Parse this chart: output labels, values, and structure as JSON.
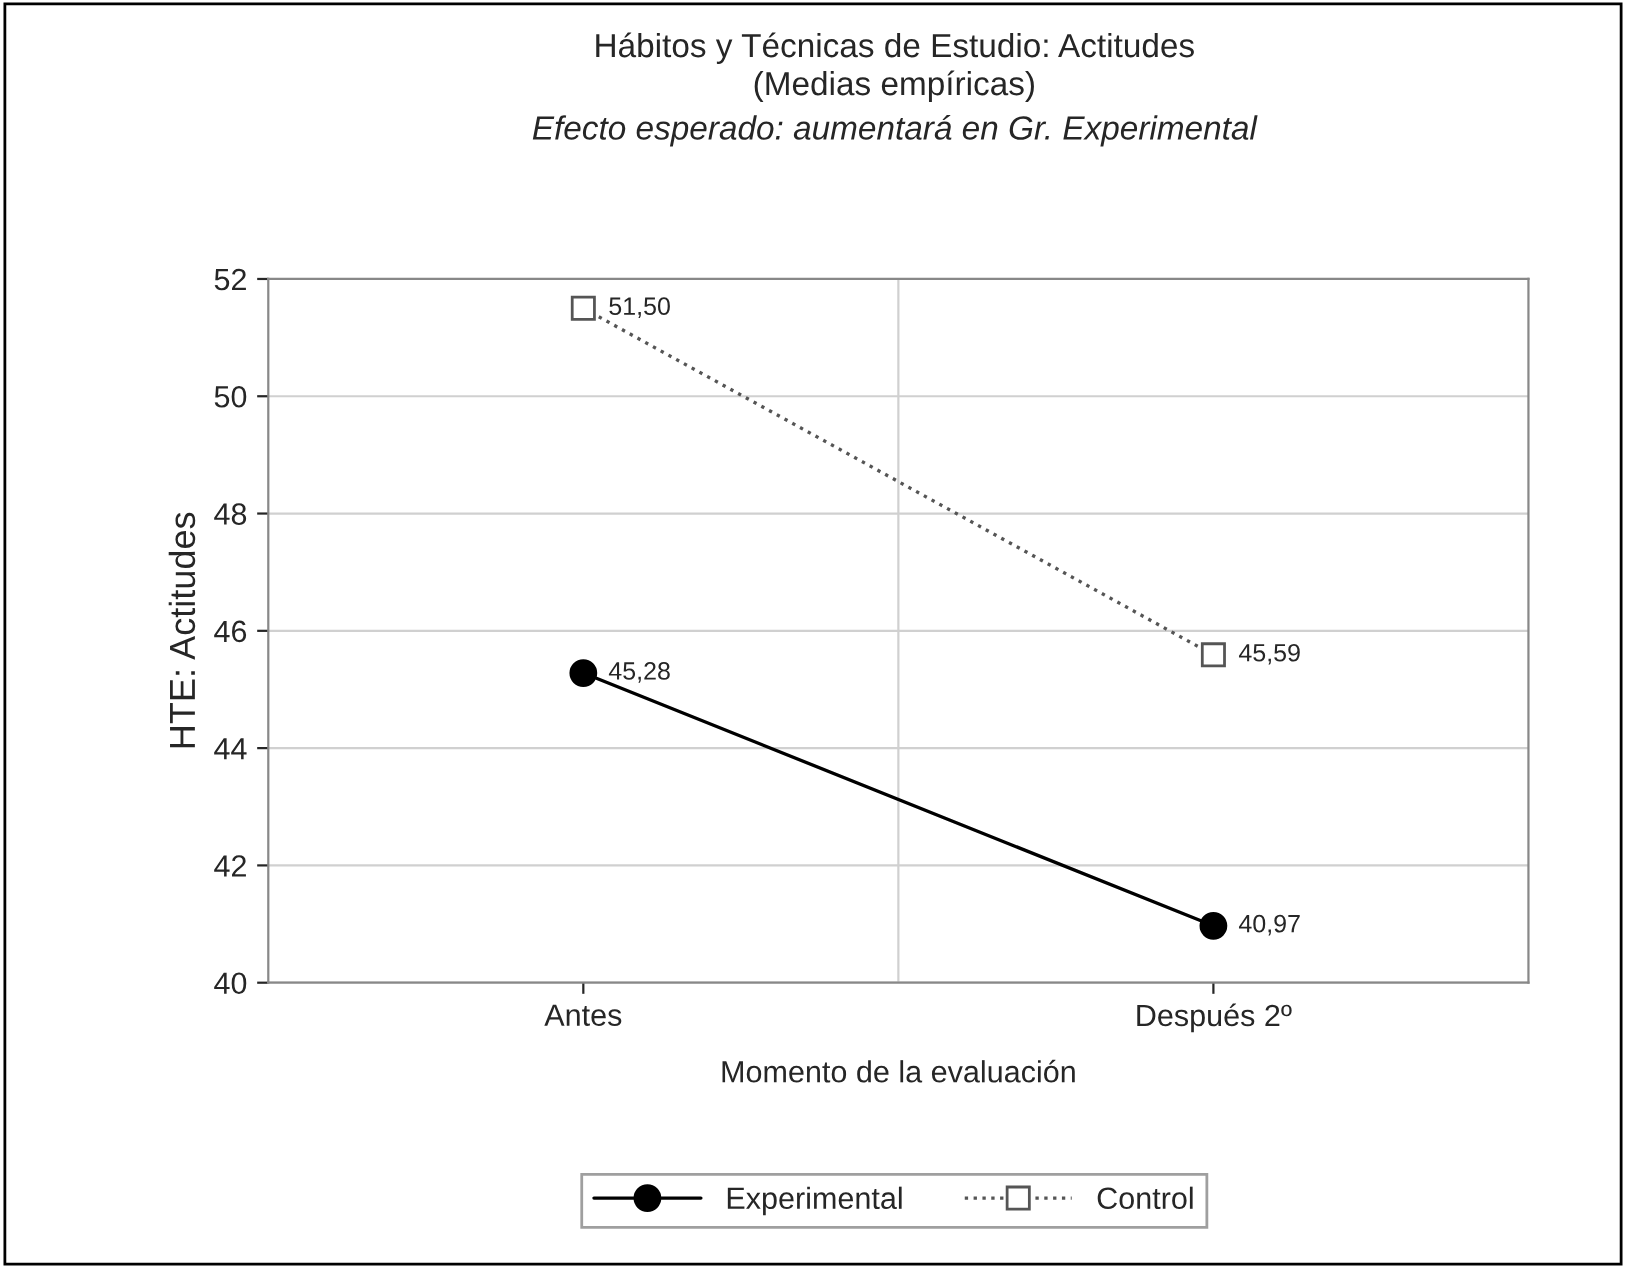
{
  "chart_data": {
    "type": "line",
    "title": "Hábitos y Técnicas de Estudio: Actitudes",
    "subtitle": "(Medias empíricas)",
    "annotations": [
      "Efecto esperado: aumentará en Gr. Experimental"
    ],
    "xlabel": "Momento de la evaluación",
    "ylabel": "HTE: Actitudes",
    "categories": [
      "Antes",
      "Después 2º"
    ],
    "series": [
      {
        "name": "Experimental",
        "color": "#000000",
        "values": [
          45.28,
          40.97
        ],
        "value_labels": [
          "45,28",
          "40,97"
        ],
        "marker": "circle",
        "line_style": "solid"
      },
      {
        "name": "Control",
        "color": "#555555",
        "values": [
          51.5,
          45.59
        ],
        "value_labels": [
          "51,50",
          "45,59"
        ],
        "marker": "square",
        "line_style": "dotted"
      }
    ],
    "ylim": [
      40,
      52
    ],
    "yticks": [
      40,
      42,
      44,
      46,
      48,
      50,
      52
    ],
    "grid": true,
    "legend": "bottom"
  }
}
